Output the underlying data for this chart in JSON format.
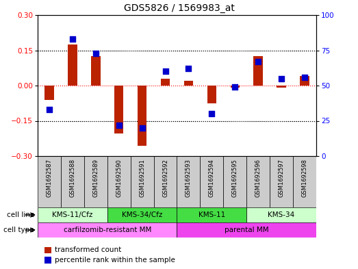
{
  "title": "GDS5826 / 1569983_at",
  "samples": [
    "GSM1692587",
    "GSM1692588",
    "GSM1692589",
    "GSM1692590",
    "GSM1692591",
    "GSM1692592",
    "GSM1692593",
    "GSM1692594",
    "GSM1692595",
    "GSM1692596",
    "GSM1692597",
    "GSM1692598"
  ],
  "transformed_count": [
    -0.06,
    0.175,
    0.125,
    -0.205,
    -0.255,
    0.03,
    0.02,
    -0.075,
    -0.01,
    0.125,
    -0.01,
    0.04
  ],
  "percentile_rank": [
    33,
    83,
    73,
    22,
    20,
    60,
    62,
    30,
    49,
    67,
    55,
    56
  ],
  "ylim_left": [
    -0.3,
    0.3
  ],
  "ylim_right": [
    0,
    100
  ],
  "yticks_left": [
    -0.3,
    -0.15,
    0,
    0.15,
    0.3
  ],
  "yticks_right": [
    0,
    25,
    50,
    75,
    100
  ],
  "bar_color": "#BB2200",
  "dot_color": "#0000CC",
  "cell_line_groups": [
    {
      "label": "KMS-11/Cfz",
      "start": 0,
      "end": 2,
      "color": "#CCFFCC"
    },
    {
      "label": "KMS-34/Cfz",
      "start": 3,
      "end": 5,
      "color": "#44DD44"
    },
    {
      "label": "KMS-11",
      "start": 6,
      "end": 8,
      "color": "#44DD44"
    },
    {
      "label": "KMS-34",
      "start": 9,
      "end": 11,
      "color": "#CCFFCC"
    }
  ],
  "cell_type_groups": [
    {
      "label": "carfilzomib-resistant MM",
      "start": 0,
      "end": 5,
      "color": "#FF88FF"
    },
    {
      "label": "parental MM",
      "start": 6,
      "end": 11,
      "color": "#EE44EE"
    }
  ],
  "legend_items": [
    {
      "color": "#BB2200",
      "label": "transformed count"
    },
    {
      "color": "#0000CC",
      "label": "percentile rank within the sample"
    }
  ],
  "tick_label_bg": "#CCCCCC",
  "hline_values": [
    0.15,
    -0.15
  ],
  "bar_width": 0.4
}
